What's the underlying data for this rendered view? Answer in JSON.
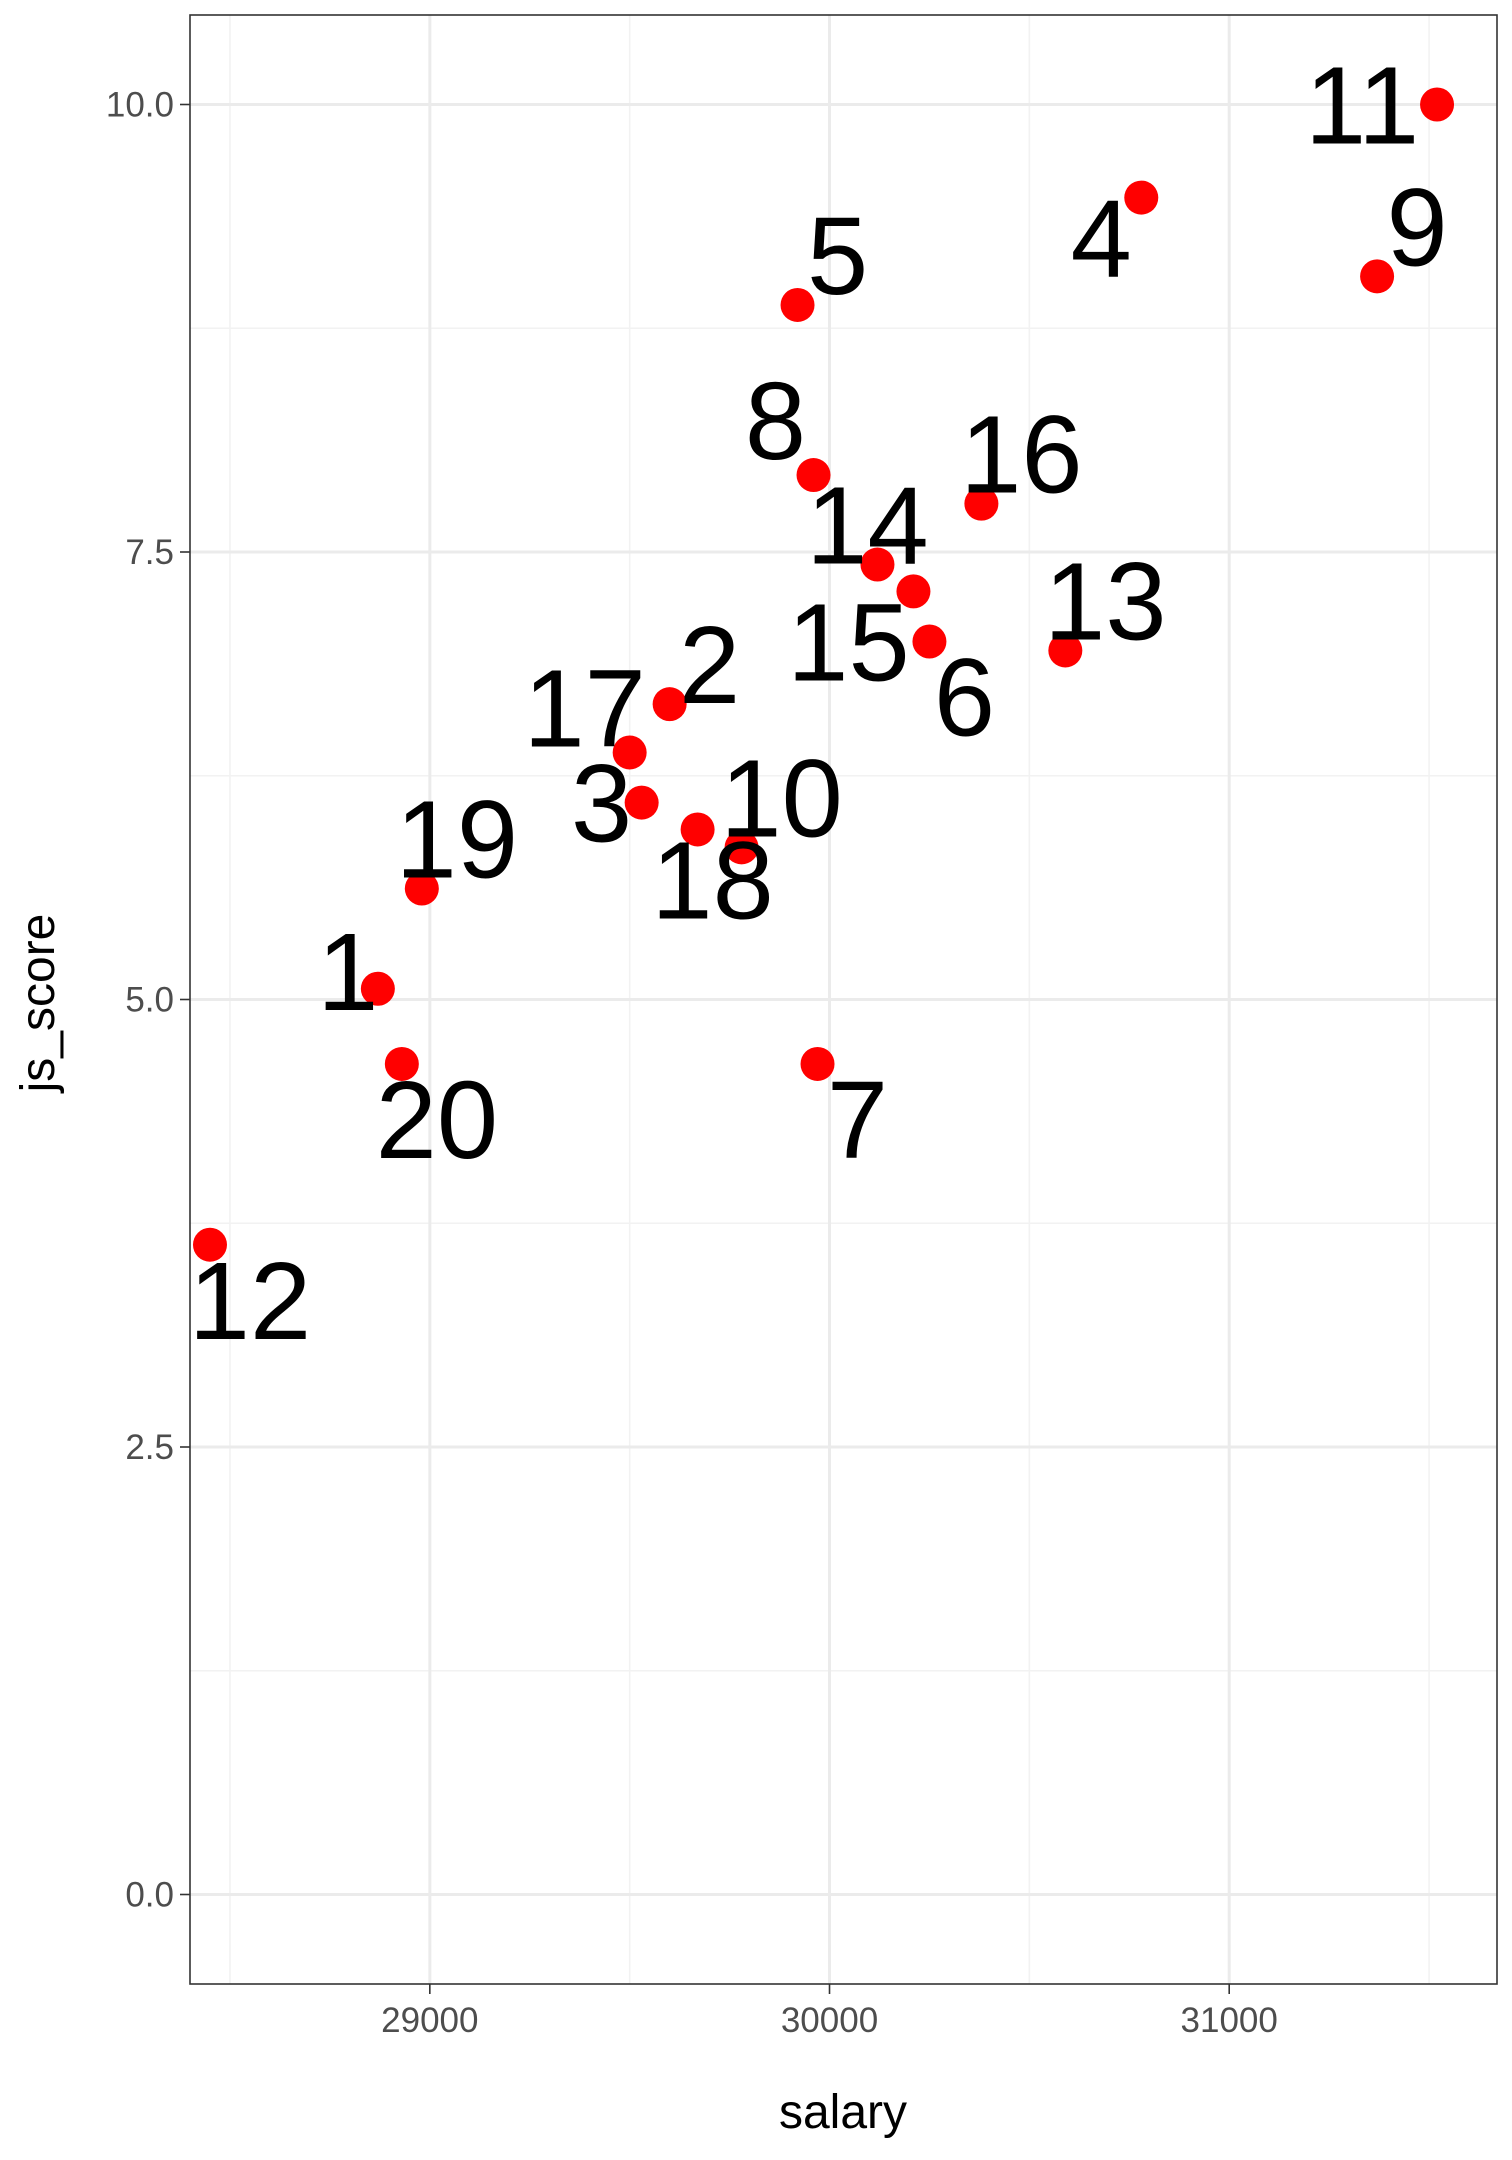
{
  "chart_data": {
    "type": "scatter",
    "xlabel": "salary",
    "ylabel": "js_score",
    "xlim": [
      28400,
      31670
    ],
    "ylim": [
      -0.5,
      10.5
    ],
    "x_ticks": [
      {
        "value": 29000,
        "label": "29000"
      },
      {
        "value": 30000,
        "label": "30000"
      },
      {
        "value": 31000,
        "label": "31000"
      }
    ],
    "y_ticks": [
      {
        "value": 0.0,
        "label": "0.0"
      },
      {
        "value": 2.5,
        "label": "2.5"
      },
      {
        "value": 5.0,
        "label": "5.0"
      },
      {
        "value": 7.5,
        "label": "7.5"
      },
      {
        "value": 10.0,
        "label": "10.0"
      }
    ],
    "grid": true,
    "point_color": "#ff0000",
    "points": [
      {
        "label": "1",
        "x": 28870,
        "y": 5.06,
        "label_dx": -30,
        "label_dy": -8
      },
      {
        "label": "2",
        "x": 29600,
        "y": 6.65,
        "label_dx": 40,
        "label_dy": -30
      },
      {
        "label": "3",
        "x": 29530,
        "y": 6.1,
        "label_dx": -40,
        "label_dy": 10
      },
      {
        "label": "4",
        "x": 30780,
        "y": 9.48,
        "label_dx": -40,
        "label_dy": 50
      },
      {
        "label": "5",
        "x": 29920,
        "y": 8.88,
        "label_dx": 40,
        "label_dy": -40
      },
      {
        "label": "6",
        "x": 30250,
        "y": 7.0,
        "label_dx": 35,
        "label_dy": 65
      },
      {
        "label": "7",
        "x": 29970,
        "y": 4.64,
        "label_dx": 40,
        "label_dy": 65
      },
      {
        "label": "8",
        "x": 29960,
        "y": 7.93,
        "label_dx": -38,
        "label_dy": -45
      },
      {
        "label": "9",
        "x": 31370,
        "y": 9.04,
        "label_dx": 40,
        "label_dy": -40
      },
      {
        "label": "10",
        "x": 29780,
        "y": 5.85,
        "label_dx": 40,
        "label_dy": -40
      },
      {
        "label": "11",
        "x": 31520,
        "y": 10.0,
        "label_dx": -75,
        "label_dy": 10
      },
      {
        "label": "12",
        "x": 28450,
        "y": 3.63,
        "label_dx": 40,
        "label_dy": 65
      },
      {
        "label": "13",
        "x": 30590,
        "y": 6.95,
        "label_dx": 40,
        "label_dy": -40
      },
      {
        "label": "14",
        "x": 30120,
        "y": 7.43,
        "label_dx": -10,
        "label_dy": -30
      },
      {
        "label": "15",
        "x": 30210,
        "y": 7.28,
        "label_dx": -65,
        "label_dy": 60
      },
      {
        "label": "16",
        "x": 30380,
        "y": 7.77,
        "label_dx": 40,
        "label_dy": -40
      },
      {
        "label": "17",
        "x": 29500,
        "y": 6.38,
        "label_dx": -45,
        "label_dy": -35
      },
      {
        "label": "18",
        "x": 29670,
        "y": 5.95,
        "label_dx": 15,
        "label_dy": 60
      },
      {
        "label": "19",
        "x": 28980,
        "y": 5.62,
        "label_dx": 35,
        "label_dy": -40
      },
      {
        "label": "20",
        "x": 28930,
        "y": 4.64,
        "label_dx": 35,
        "label_dy": 65
      }
    ]
  }
}
